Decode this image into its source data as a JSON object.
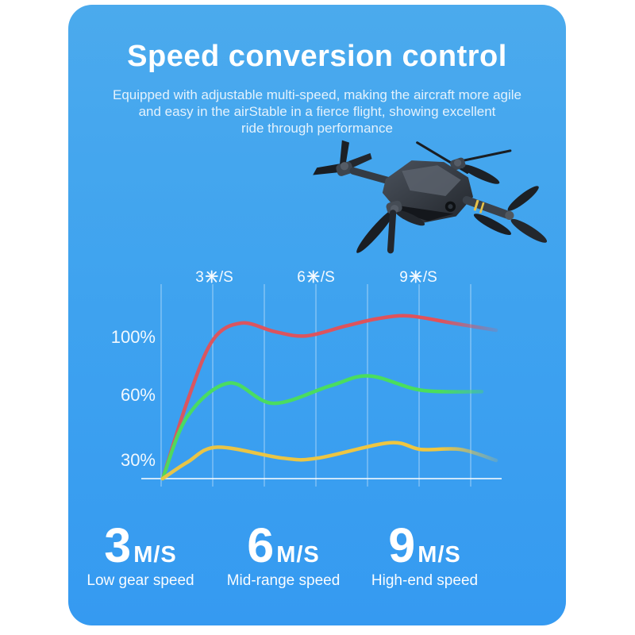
{
  "page": {
    "background": "#ffffff"
  },
  "card": {
    "bg_top": "#4BAAED",
    "bg_bottom": "#3599F1",
    "shape": "rounded rectangle"
  },
  "header": {
    "title": "Speed conversion control",
    "subtitle_lines": [
      "Equipped with adjustable multi-speed, making the aircraft more agile",
      "and easy in the airStable in a fierce flight, showing excellent",
      "ride through performance"
    ]
  },
  "drone": {
    "description": "dark gray folding quadcopter drone tilted in flight",
    "body_color": "#343A43",
    "accent_stripe_color": "#E6C24A"
  },
  "chart_data": {
    "type": "line",
    "title": "",
    "xlabel": "",
    "ylabel": "",
    "x_ticks": [
      {
        "label": "3米/S",
        "num": "3",
        "suffix": "/S"
      },
      {
        "label": "6米/S",
        "num": "6",
        "suffix": "/S"
      },
      {
        "label": "9米/S",
        "num": "9",
        "suffix": "/S"
      }
    ],
    "y_tick_labels": [
      "100%",
      "60%",
      "30%"
    ],
    "ylim": [
      0,
      120
    ],
    "grid": "7 vertical white translucent gridlines + white baseline",
    "legend": "none",
    "series": [
      {
        "name": "High-end speed (9 M/S)",
        "color": "#E0525A",
        "points_frac_pct": [
          [
            0,
            0
          ],
          [
            0.074,
            57
          ],
          [
            0.15,
            98
          ],
          [
            0.236,
            110
          ],
          [
            0.336,
            104
          ],
          [
            0.429,
            101
          ],
          [
            0.55,
            108
          ],
          [
            0.643,
            113
          ],
          [
            0.738,
            115
          ],
          [
            0.869,
            110
          ],
          [
            1,
            105
          ]
        ]
      },
      {
        "name": "Mid-range speed (6 M/S)",
        "color": "#4ADE5C",
        "points_frac_pct": [
          [
            0,
            0
          ],
          [
            0.074,
            50
          ],
          [
            0.198,
            68
          ],
          [
            0.331,
            56
          ],
          [
            0.502,
            66
          ],
          [
            0.619,
            73
          ],
          [
            0.776,
            63
          ],
          [
            0.957,
            62
          ]
        ]
      },
      {
        "name": "Low gear speed (3 M/S)",
        "color": "#F0C63F",
        "points_frac_pct": [
          [
            0,
            0
          ],
          [
            0.074,
            27
          ],
          [
            0.164,
            36
          ],
          [
            0.36,
            31
          ],
          [
            0.464,
            31
          ],
          [
            0.679,
            38
          ],
          [
            0.774,
            35
          ],
          [
            0.893,
            35
          ],
          [
            1,
            30
          ]
        ]
      }
    ]
  },
  "speeds": [
    {
      "value": "3",
      "unit": "M/S",
      "label": "Low gear speed"
    },
    {
      "value": "6",
      "unit": "M/S",
      "label": "Mid-range speed"
    },
    {
      "value": "9",
      "unit": "M/S",
      "label": "High-end speed"
    }
  ]
}
